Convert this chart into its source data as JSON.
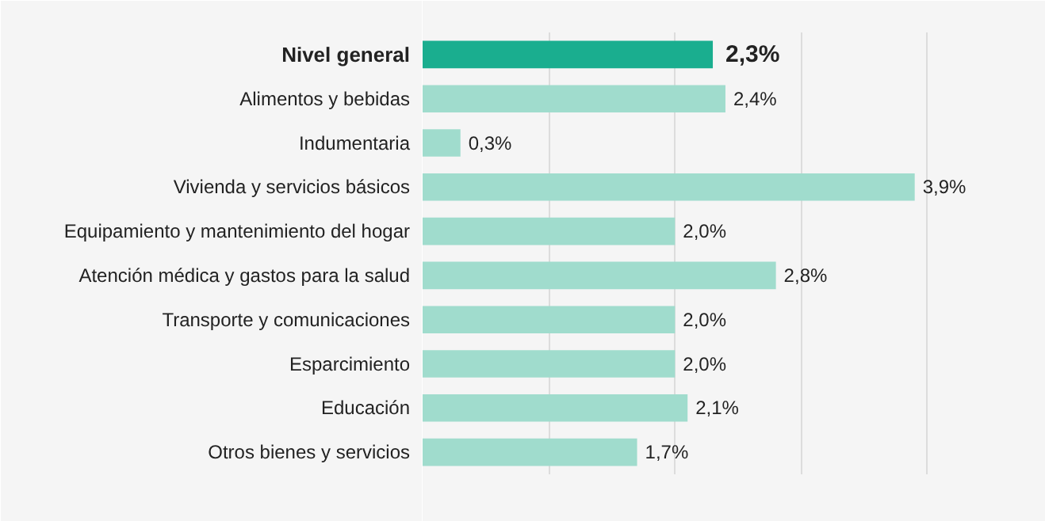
{
  "chart_data": {
    "type": "bar",
    "orientation": "horizontal",
    "categories": [
      "Nivel general",
      "Alimentos y bebidas",
      "Indumentaria",
      "Vivienda y servicios básicos",
      "Equipamiento y mantenimiento del hogar",
      "Atención médica y gastos para la salud",
      "Transporte y comunicaciones",
      "Esparcimiento",
      "Educación",
      "Otros bienes y servicios"
    ],
    "values": [
      2.3,
      2.4,
      0.3,
      3.9,
      2.0,
      2.8,
      2.0,
      2.0,
      2.1,
      1.7
    ],
    "colors": [
      "#1aae8f",
      "#a0dccd",
      "#a0dccd",
      "#a0dccd",
      "#a0dccd",
      "#a0dccd",
      "#a0dccd",
      "#a0dccd",
      "#a0dccd",
      "#a0dccd"
    ],
    "value_labels": [
      "2,3%",
      "2,4%",
      "0,3%",
      "3,9%",
      "2,0%",
      "2,8%",
      "2,0%",
      "2,0%",
      "2,1%",
      "1,7%"
    ],
    "xlim": [
      0,
      4.7
    ],
    "xticks": [
      {
        "value": 1,
        "label": null
      },
      {
        "value": 2,
        "label": null
      },
      {
        "value": 3,
        "label": null
      },
      {
        "value": 4,
        "label": null
      }
    ],
    "grid": "x"
  }
}
